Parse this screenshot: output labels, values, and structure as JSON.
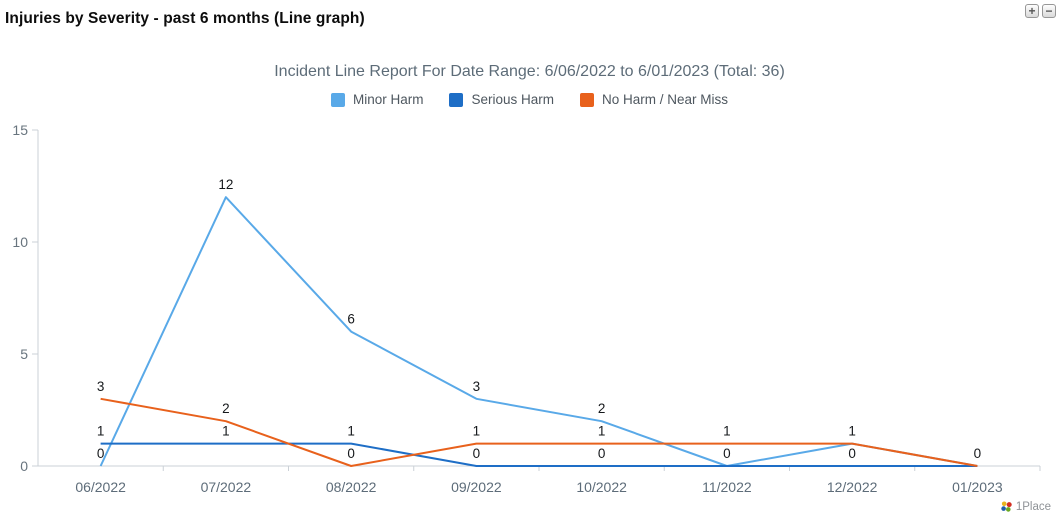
{
  "page_title": "Injuries by Severity - past 6 months (Line graph)",
  "controls": {
    "expand_label": "+",
    "collapse_label": "−"
  },
  "footer": {
    "brand": "1Place"
  },
  "chart_data": {
    "type": "line",
    "title": "Incident Line Report For Date Range: 6/06/2022 to 6/01/2023 (Total: 36)",
    "categories": [
      "06/2022",
      "07/2022",
      "08/2022",
      "09/2022",
      "10/2022",
      "11/2022",
      "12/2022",
      "01/2023"
    ],
    "series": [
      {
        "name": "Minor Harm",
        "color": "#59A9E8",
        "values": [
          0,
          12,
          6,
          3,
          2,
          0,
          1,
          0
        ]
      },
      {
        "name": "Serious Harm",
        "color": "#1E6EC6",
        "values": [
          1,
          1,
          1,
          0,
          0,
          0,
          0,
          0
        ]
      },
      {
        "name": "No Harm / Near Miss",
        "color": "#E8611C",
        "values": [
          3,
          2,
          0,
          1,
          1,
          1,
          1,
          0
        ]
      }
    ],
    "xlabel": "",
    "ylabel": "",
    "ylim": [
      0,
      15
    ],
    "yticks": [
      0,
      5,
      10,
      15
    ],
    "legend_position": "top",
    "grid": false,
    "data_labels": true,
    "colors": {
      "axis_line": "#CBD1D7",
      "axis_label": "#5D6C79",
      "ytick_label": "#68747E",
      "data_label": "#15181b"
    }
  }
}
